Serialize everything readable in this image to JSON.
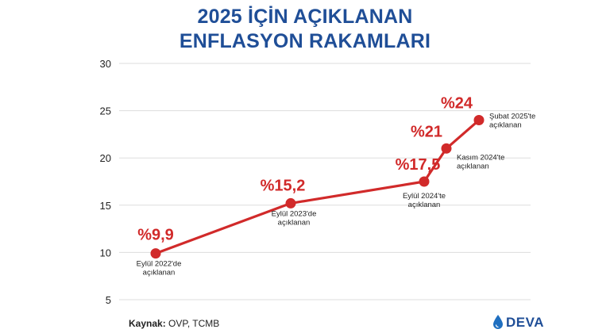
{
  "title": {
    "line1": "2025 İÇİN AÇIKLANAN",
    "line2": "ENFLASYON RAKAMLARI"
  },
  "source": {
    "label": "Kaynak:",
    "value": "OVP, TCMB"
  },
  "logo": {
    "text": "DEVA",
    "icon": "water-drop-icon"
  },
  "colors": {
    "title": "#1f4e97",
    "line": "#d12a2a",
    "grid": "#dddddd",
    "axis_text": "#222222"
  },
  "chart_data": {
    "type": "line",
    "title": "2025 İÇİN AÇIKLANAN ENFLASYON RAKAMLARI",
    "xlabel": "",
    "ylabel": "",
    "ylim": [
      5,
      30
    ],
    "yticks": [
      5,
      10,
      15,
      20,
      25,
      30
    ],
    "grid": true,
    "series": [
      {
        "values": [
          9.9,
          15.2,
          17.5,
          21,
          24
        ],
        "value_labels": [
          "%9,9",
          "%15,2",
          "%17,5",
          "%21",
          "%24"
        ],
        "point_labels": [
          [
            "Eylül 2022'de",
            "açıklanan"
          ],
          [
            "Eylül 2023'de",
            "açıklanan"
          ],
          [
            "Eylül 2024'te",
            "açıklanan"
          ],
          [
            "Kasım 2024'te",
            "açıklanan"
          ],
          [
            "Şubat 2025'te",
            "açıklanan"
          ]
        ]
      }
    ]
  }
}
